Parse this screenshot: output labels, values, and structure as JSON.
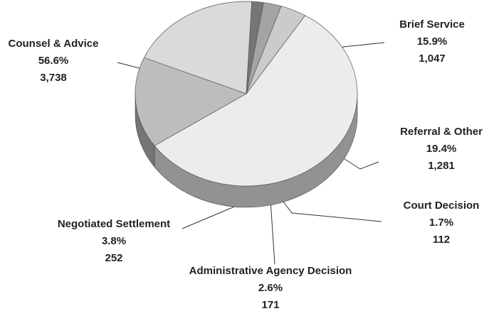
{
  "chart_data": {
    "type": "pie3d",
    "categories": [
      "Counsel & Advice",
      "Brief Service",
      "Referral & Other",
      "Court Decision",
      "Administrative Agency Decision",
      "Negotiated Settlement"
    ],
    "values": [
      56.6,
      15.9,
      19.4,
      1.7,
      2.6,
      3.8
    ],
    "value_labels": [
      "56.6%",
      "15.9%",
      "19.4%",
      "1.7%",
      "2.6%",
      "3.8%"
    ],
    "counts": [
      3738,
      1047,
      1281,
      112,
      171,
      252
    ],
    "count_labels": [
      "3,738",
      "1,047",
      "1,281",
      "112",
      "171",
      "252"
    ],
    "colors": [
      "#ececec",
      "#bdbdbd",
      "#dadada",
      "#767676",
      "#a4a4a4",
      "#cbcbcb"
    ]
  }
}
